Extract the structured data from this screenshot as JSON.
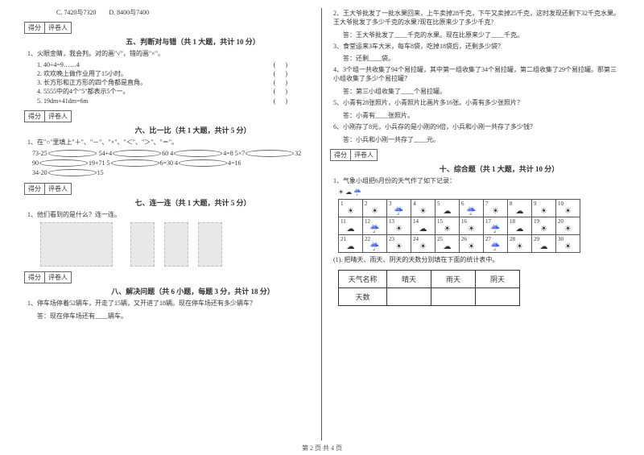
{
  "options": {
    "c": "C. 7420与7320",
    "d": "D. 8400与7400"
  },
  "scorebox": {
    "a": "得分",
    "b": "评卷人"
  },
  "s5": {
    "title": "五、判断对与错（共 1 大题，共计 10 分）",
    "q1": "1、火眼金睛，我会判。对的画\"√\"，错的画\"×\"。",
    "subs": [
      "1. 40÷4=9……4",
      "2. 欢欢晚上做作业用了15小时。",
      "3. 长方形和正方形的四个角都是直角。",
      "4. 5555中的4个\"5\"都表示5个一。",
      "5. 19dm+41dm=6m"
    ]
  },
  "s6": {
    "title": "六、比一比（共 1 大题，共计 5 分）",
    "q1": "1、在\"○\"里填上\"＋\"、\"－\"、\"×\"、\"＜\"、\"＞\"、\"＝\"。",
    "rows": [
      [
        "73-25",
        "54+4○60",
        "4○4=8",
        "5×7○32"
      ],
      [
        "90○19+71",
        "5○6=30",
        "4○4=16",
        "34-20○15"
      ]
    ]
  },
  "s7": {
    "title": "七、连一连（共 1 大题，共计 5 分）",
    "q1": "1、他们看到的是什么？连一连。"
  },
  "s8": {
    "title": "八、解决问题（共 6 小题，每题 3 分，共计 18 分）",
    "q1": "1、停车场停着52辆车，开走了15辆，又开进了18辆。现在停车场还有多少辆车？",
    "a1": "答：现在停车场还有____辆车。",
    "q2": "2、王大爷批发了一批水果回来，上午卖掉28千克，下午又卖掉25千克，这时发现还剩下32千克水果。王大爷批发了多少千克的水果?现在比原来少了多少千克?",
    "a2": "答：王大爷批发了____千克的水果。现在比原来少了____千克。",
    "q3": "3、食堂运来3车大米，每车8袋，吃掉18袋后，还剩多少袋？",
    "a3": "答：还剩____袋。",
    "q4": "4、3个组一共收集了94个易拉罐，其中第一组收集了34个易拉罐，第二组收集了29个易拉罐。那第三小组收集了多少个易拉罐？",
    "a4": "答：第三小组收集了____个易拉罐。",
    "q5": "5、小青有28张照片，小青照片比画片多16张。小青有多少张照片？",
    "a5": "答：小青有____张照片。",
    "q6": "6、小刚存了8元，小兵存的是小刚的9倍，小兵和小刚一共存了多少钱？",
    "a6": "答：小兵和小刚一共存了____元。"
  },
  "s10": {
    "title": "十、综合题（共 1 大题，共计 10 分）",
    "q1": "1、气象小组把6月份的天气作了如下记录：",
    "legend": "☀  ☁  ☔",
    "task": "(1). 把晴天、雨天、阴天的天数分别填在下面的统计表中。",
    "tbl": {
      "h": "天气名称",
      "c1": "晴天",
      "c2": "雨天",
      "c3": "阴天",
      "r": "天数"
    },
    "days": [
      [
        1,
        "☀"
      ],
      [
        2,
        "☀"
      ],
      [
        3,
        "☔"
      ],
      [
        4,
        "☀"
      ],
      [
        5,
        "☁"
      ],
      [
        6,
        "☔"
      ],
      [
        7,
        "☀"
      ],
      [
        8,
        "☁"
      ],
      [
        9,
        "☀"
      ],
      [
        10,
        "☀"
      ],
      [
        11,
        "☁"
      ],
      [
        12,
        "☔"
      ],
      [
        13,
        "☀"
      ],
      [
        14,
        "☁"
      ],
      [
        15,
        "☀"
      ],
      [
        16,
        "☀"
      ],
      [
        17,
        "☔"
      ],
      [
        18,
        "☁"
      ],
      [
        19,
        "☀"
      ],
      [
        20,
        "☀"
      ],
      [
        21,
        "☁"
      ],
      [
        22,
        "☔"
      ],
      [
        23,
        "☀"
      ],
      [
        24,
        "☀"
      ],
      [
        25,
        "☁"
      ],
      [
        26,
        "☀"
      ],
      [
        27,
        "☔"
      ],
      [
        28,
        "☀"
      ],
      [
        29,
        "☁"
      ],
      [
        30,
        "☀"
      ]
    ]
  },
  "footer": "第 2 页  共 4 页"
}
